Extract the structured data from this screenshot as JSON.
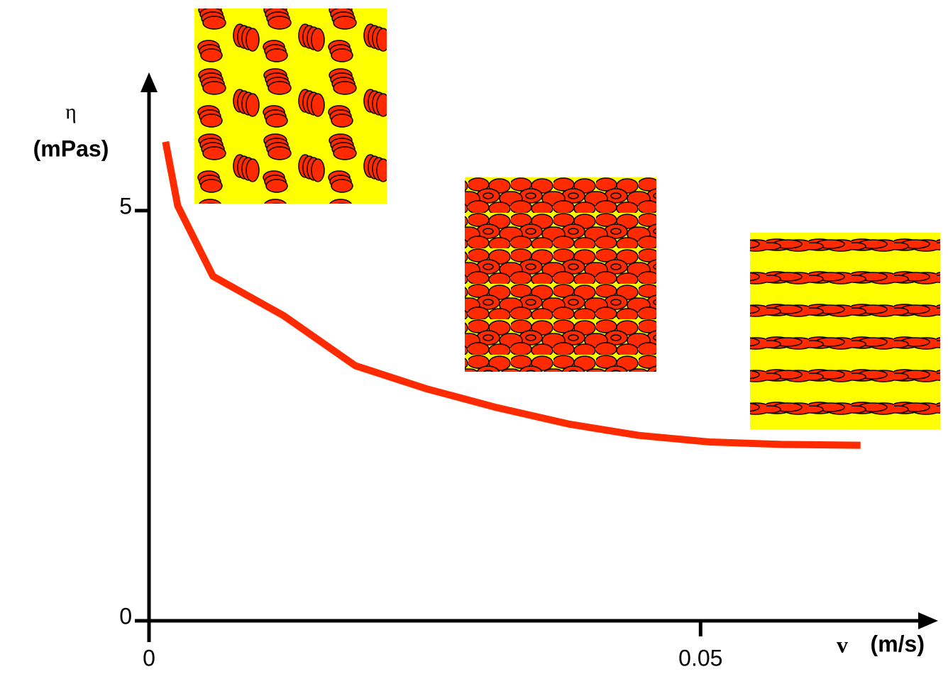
{
  "chart_data": {
    "type": "line",
    "y_label_symbol": "η",
    "y_label_unit": "(mPas)",
    "x_label_symbol": "v",
    "x_label_unit": "(m/s)",
    "xlim": [
      0,
      0.0714
    ],
    "ylim": [
      0,
      6.66
    ],
    "xticks": [
      0,
      0.05
    ],
    "yticks": [
      0,
      5
    ],
    "series": [
      {
        "color": "#ff2a00",
        "x": [
          0.0015,
          0.0026,
          0.0058,
          0.0122,
          0.0187,
          0.0251,
          0.0315,
          0.038,
          0.0444,
          0.0508,
          0.0573,
          0.0645
        ],
        "values": [
          5.84,
          5.06,
          4.2,
          3.72,
          3.11,
          2.83,
          2.6,
          2.4,
          2.26,
          2.18,
          2.15,
          2.14
        ]
      }
    ]
  }
}
